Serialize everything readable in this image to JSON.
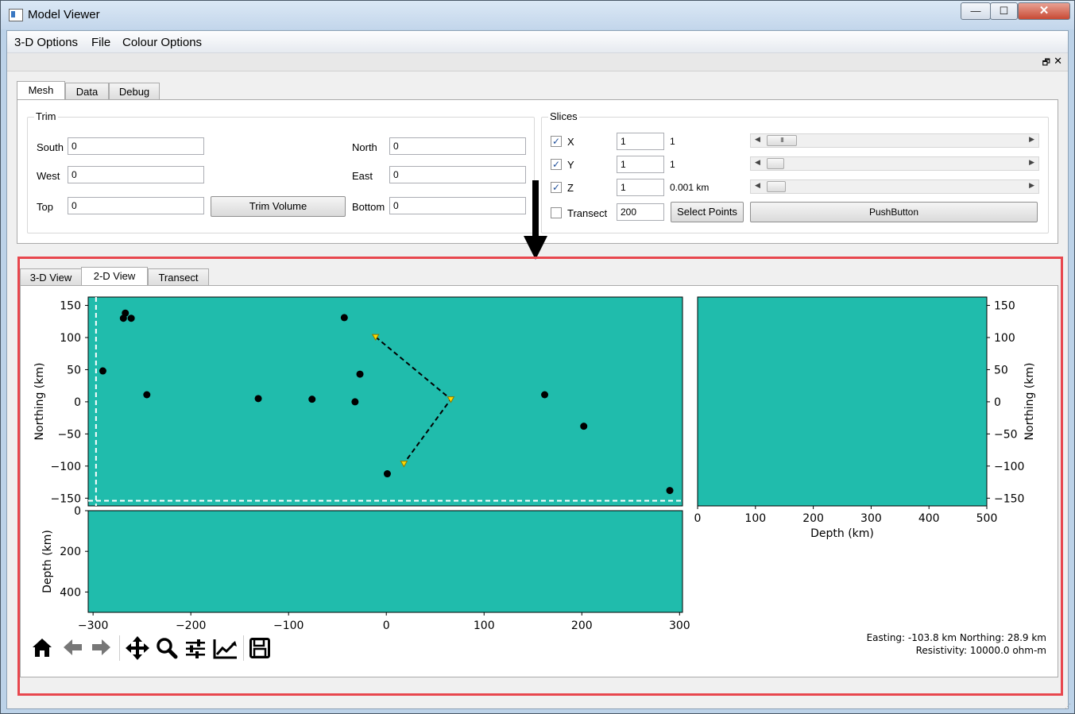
{
  "window": {
    "title": "Model Viewer",
    "min_label": "—",
    "max_label": "☐",
    "close_label": "✕"
  },
  "menu": [
    "3-D Options",
    "File",
    "Colour Options"
  ],
  "top_tabs": [
    "Mesh",
    "Data",
    "Debug"
  ],
  "trim": {
    "title": "Trim",
    "south": {
      "label": "South",
      "value": "0"
    },
    "west": {
      "label": "West",
      "value": "0"
    },
    "top": {
      "label": "Top",
      "value": "0"
    },
    "north": {
      "label": "North",
      "value": "0"
    },
    "east": {
      "label": "East",
      "value": "0"
    },
    "bottom": {
      "label": "Bottom",
      "value": "0"
    },
    "button": "Trim Volume"
  },
  "slices": {
    "title": "Slices",
    "x": {
      "label": "X",
      "checked": true,
      "value": "1",
      "readout": "1",
      "slider": 0.05
    },
    "y": {
      "label": "Y",
      "checked": true,
      "value": "1",
      "readout": "1",
      "slider": 0.0
    },
    "z": {
      "label": "Z",
      "checked": true,
      "value": "1",
      "readout": "0.001 km",
      "slider": 0.0
    },
    "transect": {
      "label": "Transect",
      "checked": false,
      "value": "200"
    },
    "select_points": "Select Points",
    "push_button": "PushButton"
  },
  "view_tabs": [
    "3-D View",
    "2-D View",
    "Transect"
  ],
  "colors": {
    "plot_fill": "#20bcac",
    "highlight": "#e8474e",
    "marker": "#000000",
    "transect_marker": "#ffd700"
  },
  "toolbar": [
    "home-icon",
    "back-icon",
    "forward-icon",
    "pan-icon",
    "zoom-icon",
    "configure-subplots-icon",
    "edit-axis-icon",
    "save-icon"
  ],
  "status": {
    "line1": "Easting: -103.8 km Northing: 28.9 km",
    "line2": "Resistivity: 10000.0 ohm-m"
  },
  "chart_data": [
    {
      "type": "scatter",
      "name": "plan-view",
      "xlim": [
        -305,
        303
      ],
      "ylim": [
        -162,
        163
      ],
      "ylabel": "Northing (km)",
      "yticks": [
        150,
        100,
        50,
        0,
        -50,
        -100,
        -150
      ],
      "points": [
        [
          -267,
          138
        ],
        [
          -269,
          130
        ],
        [
          -261,
          130
        ],
        [
          -290,
          48
        ],
        [
          -245,
          11
        ],
        [
          -131,
          5
        ],
        [
          -76,
          4
        ],
        [
          -32,
          0
        ],
        [
          -43,
          131
        ],
        [
          -27,
          43
        ],
        [
          1,
          -112
        ],
        [
          162,
          11
        ],
        [
          202,
          -38
        ],
        [
          290,
          -138
        ]
      ],
      "transect_points": [
        [
          -11,
          101
        ],
        [
          66,
          4
        ],
        [
          18,
          -96
        ]
      ],
      "slice_lines": {
        "x": -297,
        "y": -154
      }
    },
    {
      "type": "heatmap",
      "name": "depth-section",
      "xlim": [
        -305,
        303
      ],
      "ylim": [
        0,
        500
      ],
      "ylabel": "Depth (km)",
      "yticks": [
        0,
        200,
        400
      ],
      "xticks": [
        -300,
        -200,
        -100,
        0,
        100,
        200,
        300
      ],
      "xtick_labels": [
        "−300",
        "−200",
        "−100",
        "0",
        "100",
        "200",
        "300"
      ]
    },
    {
      "type": "heatmap",
      "name": "northing-depth-section",
      "xlim": [
        0,
        500
      ],
      "ylim": [
        -162,
        163
      ],
      "xlabel": "Depth (km)",
      "ylabel": "Northing (km)",
      "xticks": [
        0,
        100,
        200,
        300,
        400,
        500
      ],
      "yticks": [
        150,
        100,
        50,
        0,
        -50,
        -100,
        -150
      ]
    }
  ]
}
